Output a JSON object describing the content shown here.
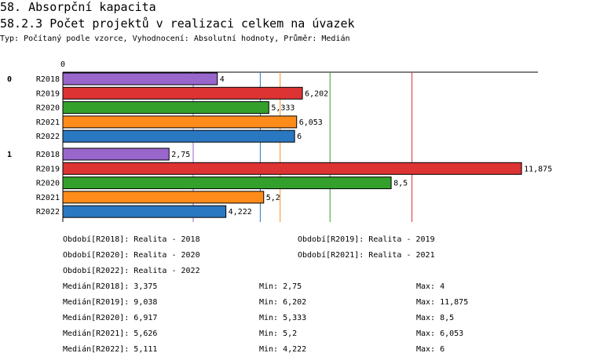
{
  "header": {
    "title": "58. Absorpční kapacita",
    "chart_title": "58.2.3 Počet projektů v realizaci celkem na úvazek",
    "subtitle": "Typ: Počítaný podle vzorce, Vyhodnocení: Absolutní hodnoty, Průměr: Medián"
  },
  "chart_data": {
    "type": "bar",
    "orientation": "horizontal",
    "title": "58.2.3 Počet projektů v realizaci celkem na úvazek",
    "axis_zero_label": "0",
    "xlim": [
      0,
      12.3
    ],
    "groups": [
      "0",
      "1"
    ],
    "series": [
      {
        "name": "R2018",
        "color": "#9966cc",
        "values": [
          4,
          2.75
        ],
        "labels": [
          "4",
          "2,75"
        ]
      },
      {
        "name": "R2019",
        "color": "#dd3333",
        "values": [
          6.202,
          11.875
        ],
        "labels": [
          "6,202",
          "11,875"
        ]
      },
      {
        "name": "R2020",
        "color": "#33a02c",
        "values": [
          5.333,
          8.5
        ],
        "labels": [
          "5,333",
          "8,5"
        ]
      },
      {
        "name": "R2021",
        "color": "#ff8c1a",
        "values": [
          6.053,
          5.2
        ],
        "labels": [
          "6,053",
          "5,2"
        ]
      },
      {
        "name": "R2022",
        "color": "#2b78c2",
        "values": [
          6,
          4.222
        ],
        "labels": [
          "6",
          "4,222"
        ]
      }
    ],
    "reference_lines": [
      {
        "series": "R2018",
        "stat": "Medián",
        "value": 3.375
      },
      {
        "series": "R2019",
        "stat": "Medián",
        "value": 9.038
      },
      {
        "series": "R2020",
        "stat": "Medián",
        "value": 6.917
      },
      {
        "series": "R2021",
        "stat": "Medián",
        "value": 5.626
      },
      {
        "series": "R2022",
        "stat": "Medián",
        "value": 5.111
      }
    ],
    "grid": false
  },
  "legend": {
    "periods": [
      "Období[R2018]: Realita - 2018",
      "Období[R2019]: Realita - 2019",
      "Období[R2020]: Realita - 2020",
      "Období[R2021]: Realita - 2021",
      "Období[R2022]: Realita - 2022"
    ],
    "stats": [
      {
        "median": "Medián[R2018]: 3,375",
        "min": "Min: 2,75",
        "max": "Max: 4"
      },
      {
        "median": "Medián[R2019]: 9,038",
        "min": "Min: 6,202",
        "max": "Max: 11,875"
      },
      {
        "median": "Medián[R2020]: 6,917",
        "min": "Min: 5,333",
        "max": "Max: 8,5"
      },
      {
        "median": "Medián[R2021]: 5,626",
        "min": "Min: 5,2",
        "max": "Max: 6,053"
      },
      {
        "median": "Medián[R2022]: 5,111",
        "min": "Min: 4,222",
        "max": "Max: 6"
      }
    ]
  }
}
